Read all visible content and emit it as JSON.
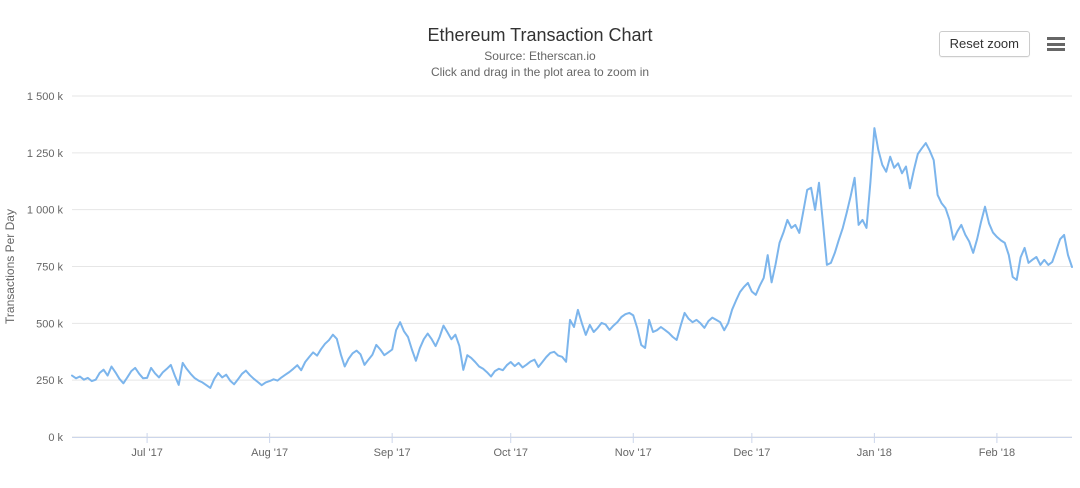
{
  "header": {
    "title": "Ethereum Transaction Chart",
    "subtitle_line1": "Source: Etherscan.io",
    "subtitle_line2": "Click and drag in the plot area to zoom in",
    "reset_zoom_label": "Reset zoom"
  },
  "icons": {
    "context_menu": "hamburger-menu-icon"
  },
  "colors": {
    "line": "#7cb5ec",
    "grid": "#e6e6e6",
    "axis_line": "#ccd6eb",
    "tick": "#ccd6eb",
    "label": "#666666",
    "title": "#333333"
  },
  "chart_data": {
    "type": "line",
    "title": "Ethereum Transaction Chart",
    "subtitle": [
      "Source: Etherscan.io",
      "Click and drag in the plot area to zoom in"
    ],
    "xlabel": "",
    "ylabel": "Transactions Per Day",
    "ylim": [
      0,
      1500
    ],
    "unit": "thousand transactions per day",
    "grid": "horizontal",
    "legend": "none",
    "interval": "daily",
    "start_date": "2017-06-12",
    "end_date": "2018-02-20",
    "y_ticks": [
      {
        "value": 0,
        "label": "0 k"
      },
      {
        "value": 250,
        "label": "250 k"
      },
      {
        "value": 500,
        "label": "500 k"
      },
      {
        "value": 750,
        "label": "750 k"
      },
      {
        "value": 1000,
        "label": "1 000 k"
      },
      {
        "value": 1250,
        "label": "1 250 k"
      },
      {
        "value": 1500,
        "label": "1 500 k"
      }
    ],
    "x_ticks": [
      {
        "label": "Jul '17",
        "day": 19
      },
      {
        "label": "Aug '17",
        "day": 50
      },
      {
        "label": "Sep '17",
        "day": 81
      },
      {
        "label": "Oct '17",
        "day": 111
      },
      {
        "label": "Nov '17",
        "day": 142
      },
      {
        "label": "Dec '17",
        "day": 172
      },
      {
        "label": "Jan '18",
        "day": 203
      },
      {
        "label": "Feb '18",
        "day": 234
      }
    ],
    "series": [
      {
        "name": "Transactions Per Day",
        "color": "#7cb5ec",
        "values": [
          270,
          258,
          266,
          252,
          260,
          246,
          252,
          282,
          296,
          270,
          310,
          284,
          256,
          236,
          262,
          290,
          304,
          278,
          258,
          260,
          304,
          280,
          262,
          285,
          300,
          317,
          270,
          229,
          326,
          300,
          278,
          260,
          248,
          240,
          228,
          216,
          256,
          282,
          262,
          274,
          248,
          232,
          254,
          278,
          292,
          272,
          256,
          242,
          228,
          240,
          246,
          254,
          248,
          262,
          274,
          286,
          300,
          316,
          294,
          330,
          352,
          372,
          358,
          386,
          410,
          426,
          450,
          432,
          364,
          310,
          345,
          368,
          380,
          364,
          317,
          340,
          362,
          405,
          385,
          360,
          372,
          385,
          470,
          505,
          465,
          440,
          385,
          335,
          390,
          430,
          455,
          430,
          400,
          440,
          490,
          460,
          430,
          450,
          400,
          295,
          360,
          348,
          330,
          310,
          300,
          285,
          266,
          290,
          300,
          294,
          316,
          330,
          312,
          326,
          306,
          318,
          332,
          340,
          308,
          330,
          352,
          370,
          375,
          358,
          353,
          331,
          515,
          484,
          559,
          500,
          449,
          493,
          462,
          480,
          502,
          495,
          471,
          490,
          506,
          528,
          540,
          546,
          535,
          480,
          405,
          392,
          515,
          462,
          470,
          484,
          471,
          458,
          440,
          427,
          490,
          546,
          520,
          505,
          515,
          500,
          480,
          510,
          525,
          515,
          505,
          470,
          500,
          560,
          600,
          638,
          660,
          678,
          640,
          625,
          665,
          700,
          800,
          680,
          760,
          854,
          900,
          955,
          920,
          933,
          898,
          990,
          1087,
          1096,
          999,
          1118,
          940,
          757,
          766,
          810,
          867,
          920,
          986,
          1060,
          1140,
          933,
          955,
          920,
          1120,
          1359,
          1263,
          1197,
          1167,
          1233,
          1184,
          1204,
          1160,
          1190,
          1094,
          1175,
          1245,
          1270,
          1293,
          1260,
          1218,
          1065,
          1028,
          1007,
          955,
          868,
          905,
          933,
          890,
          860,
          810,
          870,
          947,
          1013,
          940,
          900,
          880,
          865,
          854,
          800,
          704,
          691,
          790,
          832,
          766,
          780,
          792,
          757,
          779,
          757,
          770,
          820,
          870,
          889,
          800,
          748
        ]
      }
    ]
  }
}
